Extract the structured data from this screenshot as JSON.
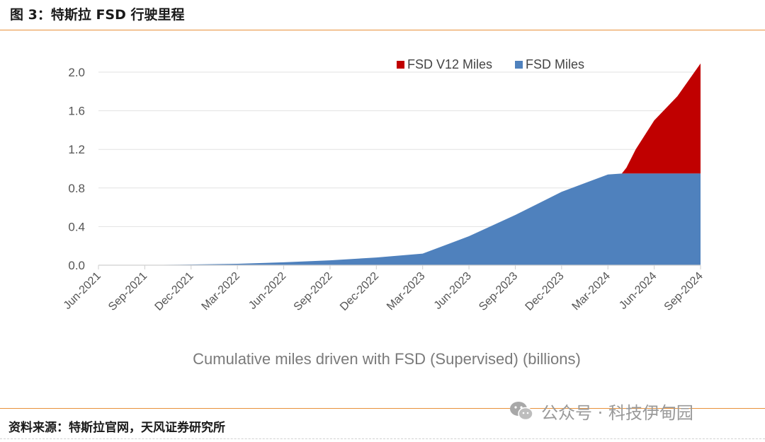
{
  "figure": {
    "title": "图 3：特斯拉 FSD 行驶里程",
    "source": "资料来源：特斯拉官网，天风证券研究所",
    "watermark": "公众号 · 科技伊甸园"
  },
  "chart_data": {
    "type": "area",
    "stacked": true,
    "title": "",
    "xlabel": "Cumulative miles driven with FSD (Supervised) (billions)",
    "ylabel": "",
    "categories": [
      "Jun-2021",
      "Sep-2021",
      "Dec-2021",
      "Mar-2022",
      "Jun-2022",
      "Sep-2022",
      "Dec-2022",
      "Mar-2023",
      "Jun-2023",
      "Sep-2023",
      "Dec-2023",
      "Mar-2024",
      "Jun-2024",
      "Sep-2024"
    ],
    "yticks": [
      "0.0",
      "0.4",
      "0.8",
      "1.2",
      "1.6",
      "2.0"
    ],
    "ylim": [
      0,
      2.1
    ],
    "grid": true,
    "legend_position": "top-right",
    "series": [
      {
        "name": "FSD Miles",
        "color": "#4f81bd",
        "points": [
          [
            0,
            0
          ],
          [
            1,
            0.002
          ],
          [
            2,
            0.007
          ],
          [
            3,
            0.015
          ],
          [
            4,
            0.03
          ],
          [
            5,
            0.05
          ],
          [
            6,
            0.08
          ],
          [
            7,
            0.12
          ],
          [
            8,
            0.3
          ],
          [
            9,
            0.52
          ],
          [
            10,
            0.76
          ],
          [
            11,
            0.94
          ],
          [
            11.3,
            0.95
          ],
          [
            12,
            0.95
          ],
          [
            13,
            0.95
          ]
        ]
      },
      {
        "name": "FSD V12 Miles",
        "color": "#c00000",
        "points": [
          [
            11,
            0.0
          ],
          [
            11.3,
            0.0
          ],
          [
            11.4,
            0.06
          ],
          [
            11.6,
            0.25
          ],
          [
            12,
            0.55
          ],
          [
            12.5,
            0.8
          ],
          [
            13,
            1.14
          ]
        ]
      }
    ],
    "legend_order": [
      "FSD V12 Miles",
      "FSD Miles"
    ]
  }
}
